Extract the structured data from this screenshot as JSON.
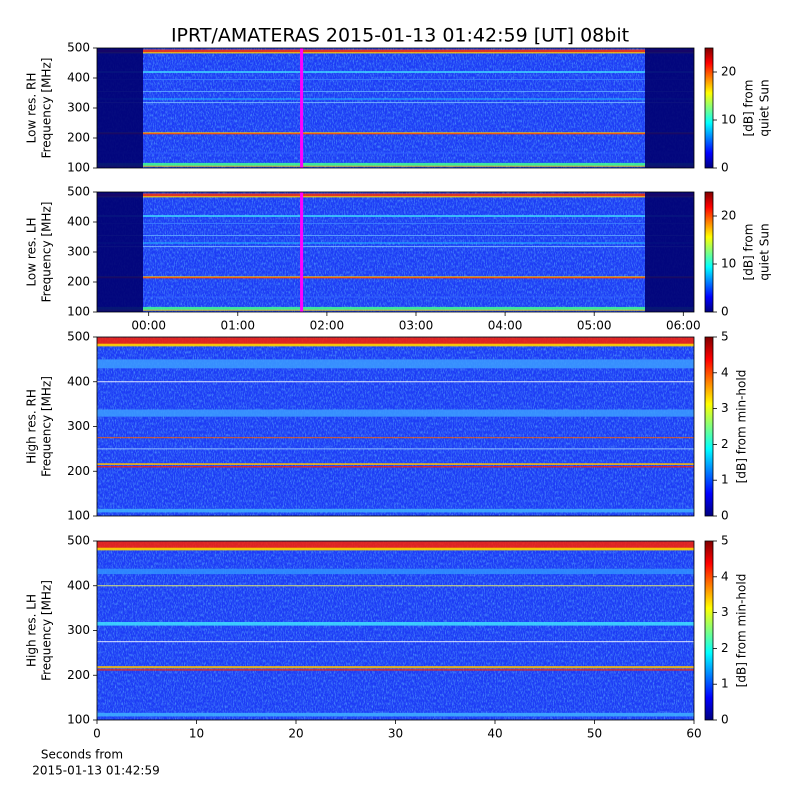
{
  "title": "IPRT/AMATERAS 2015-01-13 01:42:59 [UT]   08bit",
  "chart_data": [
    {
      "type": "spectrogram",
      "ylabel": [
        "Low res. RH",
        "Frequency [MHz]"
      ],
      "ylim": [
        100,
        500
      ],
      "yticks": [
        100,
        200,
        300,
        400,
        500
      ],
      "xlim": [
        -0.58,
        6.12
      ],
      "marker_x": 1.716,
      "marker_color": "#ff00ff",
      "colormap": "jet",
      "clim": [
        0,
        25
      ],
      "cticks": [
        0,
        10,
        20
      ],
      "clabel": [
        "[dB] from",
        "quiet Sun"
      ]
    },
    {
      "type": "spectrogram",
      "ylabel": [
        "Low res. LH",
        "Frequency [MHz]"
      ],
      "ylim": [
        100,
        500
      ],
      "yticks": [
        100,
        200,
        300,
        400,
        500
      ],
      "xlim": [
        -0.58,
        6.12
      ],
      "xticks": [
        {
          "value": 0,
          "label": "00:00"
        },
        {
          "value": 1,
          "label": "01:00"
        },
        {
          "value": 2,
          "label": "02:00"
        },
        {
          "value": 3,
          "label": "03:00"
        },
        {
          "value": 4,
          "label": "04:00"
        },
        {
          "value": 5,
          "label": "05:00"
        },
        {
          "value": 6,
          "label": "06:00"
        }
      ],
      "marker_x": 1.716,
      "marker_color": "#ff00ff",
      "colormap": "jet",
      "clim": [
        0,
        25
      ],
      "cticks": [
        0,
        10,
        20
      ],
      "clabel": [
        "[dB] from",
        "quiet Sun"
      ]
    },
    {
      "type": "spectrogram",
      "ylabel": [
        "High res. RH",
        "Frequency [MHz]"
      ],
      "ylim": [
        100,
        500
      ],
      "yticks": [
        100,
        200,
        300,
        400,
        500
      ],
      "xlim": [
        0,
        60
      ],
      "colormap": "jet",
      "clim": [
        0,
        5
      ],
      "cticks": [
        0,
        1,
        2,
        3,
        4,
        5
      ],
      "clabel": [
        "[dB] from min-hold"
      ]
    },
    {
      "type": "spectrogram",
      "ylabel": [
        "High res. LH",
        "Frequency [MHz]"
      ],
      "ylim": [
        100,
        500
      ],
      "yticks": [
        100,
        200,
        300,
        400,
        500
      ],
      "xlim": [
        0,
        60
      ],
      "xticks": [
        0,
        10,
        20,
        30,
        40,
        50,
        60
      ],
      "xlabel": [
        "Seconds from",
        "2015-01-13 01:42:59"
      ],
      "colormap": "jet",
      "clim": [
        0,
        5
      ],
      "cticks": [
        0,
        1,
        2,
        3,
        4,
        5
      ],
      "clabel": [
        "[dB] from min-hold"
      ]
    }
  ]
}
